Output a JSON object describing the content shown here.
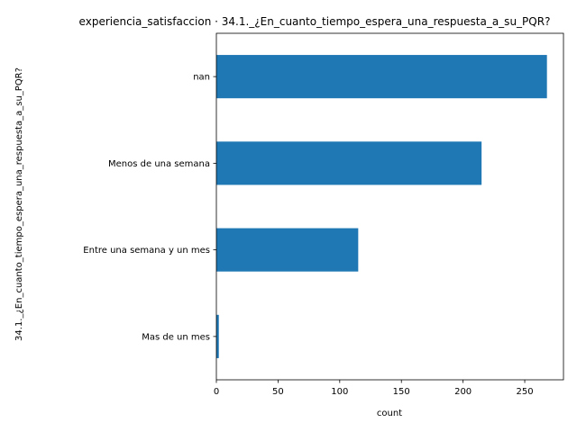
{
  "chart_data": {
    "type": "bar",
    "orientation": "horizontal",
    "title": "experiencia_satisfaccion · 34.1._¿En_cuanto_tiempo_espera_una_respuesta_a_su_PQR?",
    "xlabel": "count",
    "ylabel": "34.1._¿En_cuanto_tiempo_espera_una_respuesta_a_su_PQR?",
    "categories": [
      "nan",
      "Menos de una semana",
      "Entre una semana y un mes",
      "Mas de un mes"
    ],
    "values": [
      268,
      215,
      115,
      2
    ],
    "xlim": [
      0,
      281.4
    ],
    "xticks": [
      0,
      50,
      100,
      150,
      200,
      250
    ],
    "grid": false,
    "legend": "none",
    "bar_color": "#1f77b4"
  }
}
